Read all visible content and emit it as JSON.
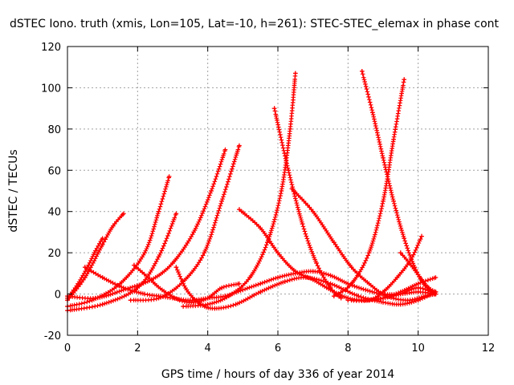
{
  "chart_data": {
    "type": "scatter",
    "title": "dSTEC Iono. truth (xmis, Lon=105, Lat=-10, h=261): STEC-STEC_elemax in phase cont",
    "xlabel": "GPS time / hours of day 336 of year 2014",
    "ylabel": "dSTEC  / TECUs",
    "xlim": [
      0,
      12
    ],
    "ylim": [
      -20,
      120
    ],
    "xticks": [
      0,
      2,
      4,
      6,
      8,
      10,
      12
    ],
    "yticks": [
      -20,
      0,
      20,
      40,
      60,
      80,
      100,
      120
    ],
    "grid": true,
    "marker": "plus",
    "color": "#ff0000",
    "series": [
      {
        "x": [
          0,
          0.3,
          0.6,
          0.8,
          1.0
        ],
        "y": [
          -2,
          5,
          14,
          21,
          27
        ]
      },
      {
        "x": [
          0,
          0.5,
          1.0,
          1.3,
          1.6
        ],
        "y": [
          -3,
          8,
          24,
          33,
          39
        ]
      },
      {
        "x": [
          0,
          0.7,
          1.5,
          2.2,
          2.6,
          2.9
        ],
        "y": [
          -6,
          -3,
          5,
          20,
          40,
          57
        ]
      },
      {
        "x": [
          0,
          1.0,
          2.0,
          2.6,
          3.1
        ],
        "y": [
          -8,
          -5,
          3,
          18,
          39
        ]
      },
      {
        "x": [
          0.5,
          1.0,
          1.6,
          2.2,
          2.6,
          3.0,
          3.5,
          4.0,
          4.5,
          5.0,
          5.5,
          6.0,
          6.5,
          7.0,
          7.5,
          8.0,
          8.5,
          9.0,
          9.5,
          10.0,
          10.5
        ],
        "y": [
          13,
          8,
          3,
          0,
          -1,
          -2,
          -3,
          -2,
          -1,
          2,
          5,
          8,
          10,
          11,
          9,
          5,
          2,
          0,
          0,
          1,
          0
        ]
      },
      {
        "x": [
          0,
          0.8,
          1.6,
          2.4,
          3.0,
          3.6,
          4.1,
          4.5
        ],
        "y": [
          -1,
          -2,
          2,
          7,
          15,
          30,
          50,
          70
        ]
      },
      {
        "x": [
          1.9,
          2.3,
          2.7,
          3.2,
          3.6,
          4.0,
          4.4,
          4.9
        ],
        "y": [
          14,
          8,
          2,
          -3,
          -4,
          -2,
          3,
          5
        ]
      },
      {
        "x": [
          1.8,
          2.6,
          3.3,
          3.9,
          4.4,
          4.9
        ],
        "y": [
          -3,
          -2,
          6,
          20,
          45,
          72
        ]
      },
      {
        "x": [
          3.1,
          3.4,
          3.8,
          4.2,
          4.8,
          5.5,
          6.2,
          6.8,
          7.5,
          8.3,
          9.0,
          9.5,
          10.0,
          10.5
        ],
        "y": [
          13,
          2,
          -5,
          -7,
          -5,
          1,
          6,
          8,
          5,
          -1,
          -4,
          -5,
          -3,
          1
        ]
      },
      {
        "x": [
          3.3,
          4.0,
          4.6,
          5.2,
          5.7,
          6.1,
          6.35,
          6.5
        ],
        "y": [
          -6,
          -5,
          -1,
          8,
          25,
          50,
          80,
          107
        ]
      },
      {
        "x": [
          4.9,
          5.5,
          6.0,
          6.5,
          7.0,
          7.5,
          8.0,
          8.5,
          9.0,
          9.5,
          10.0,
          10.5
        ],
        "y": [
          41,
          32,
          20,
          11,
          7,
          2,
          -2,
          -3,
          -2,
          0,
          3,
          0
        ]
      },
      {
        "x": [
          5.9,
          6.3,
          6.7,
          7.1,
          7.5,
          7.8
        ],
        "y": [
          90,
          60,
          34,
          15,
          3,
          -2
        ]
      },
      {
        "x": [
          6.4,
          7.0,
          7.6,
          8.1,
          8.6,
          9.1,
          9.7,
          10.2,
          10.5
        ],
        "y": [
          51,
          40,
          25,
          13,
          5,
          -1,
          -3,
          -1,
          0
        ]
      },
      {
        "x": [
          7.6,
          8.1,
          8.6,
          9.0,
          9.3,
          9.6
        ],
        "y": [
          -1,
          5,
          20,
          45,
          75,
          104
        ]
      },
      {
        "x": [
          8.4,
          8.7,
          9.0,
          9.3,
          9.6,
          9.9,
          10.2,
          10.5
        ],
        "y": [
          108,
          88,
          66,
          45,
          27,
          13,
          4,
          0
        ]
      },
      {
        "x": [
          8.0,
          8.6,
          9.0,
          9.4,
          9.8,
          10.1
        ],
        "y": [
          -3,
          -3,
          1,
          8,
          17,
          28
        ]
      },
      {
        "x": [
          9.5,
          9.8,
          10.1,
          10.3,
          10.5
        ],
        "y": [
          20,
          14,
          7,
          3,
          1
        ]
      },
      {
        "x": [
          8.6,
          9.0,
          9.5,
          10.0,
          10.5
        ],
        "y": [
          -3,
          -2,
          1,
          5,
          8
        ]
      }
    ]
  }
}
